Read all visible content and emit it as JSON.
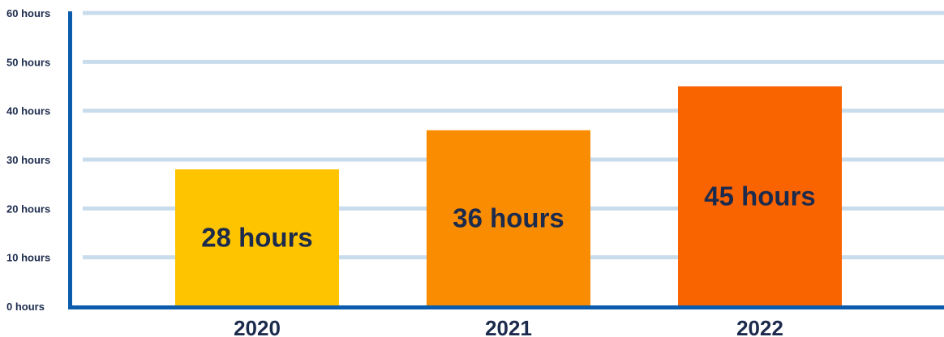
{
  "chart_data": {
    "type": "bar",
    "categories": [
      "2020",
      "2021",
      "2022"
    ],
    "values": [
      28,
      36,
      45
    ],
    "data_labels": [
      "28 hours",
      "36 hours",
      "45 hours"
    ],
    "yticks": [
      {
        "value": 0,
        "label": "0 hours"
      },
      {
        "value": 10,
        "label": "10 hours"
      },
      {
        "value": 20,
        "label": "20 hours"
      },
      {
        "value": 30,
        "label": "30 hours"
      },
      {
        "value": 40,
        "label": "40 hours"
      },
      {
        "value": 50,
        "label": "50 hours"
      },
      {
        "value": 60,
        "label": "60 hours"
      }
    ],
    "ylim": [
      0,
      60
    ],
    "grid": true,
    "legend": "none",
    "colors": {
      "bars": [
        "#ffc400",
        "#f98c00",
        "#f96400"
      ],
      "axis": "#0b5cad",
      "grid": "#c9dcec",
      "text": "#1c2b4d"
    }
  }
}
